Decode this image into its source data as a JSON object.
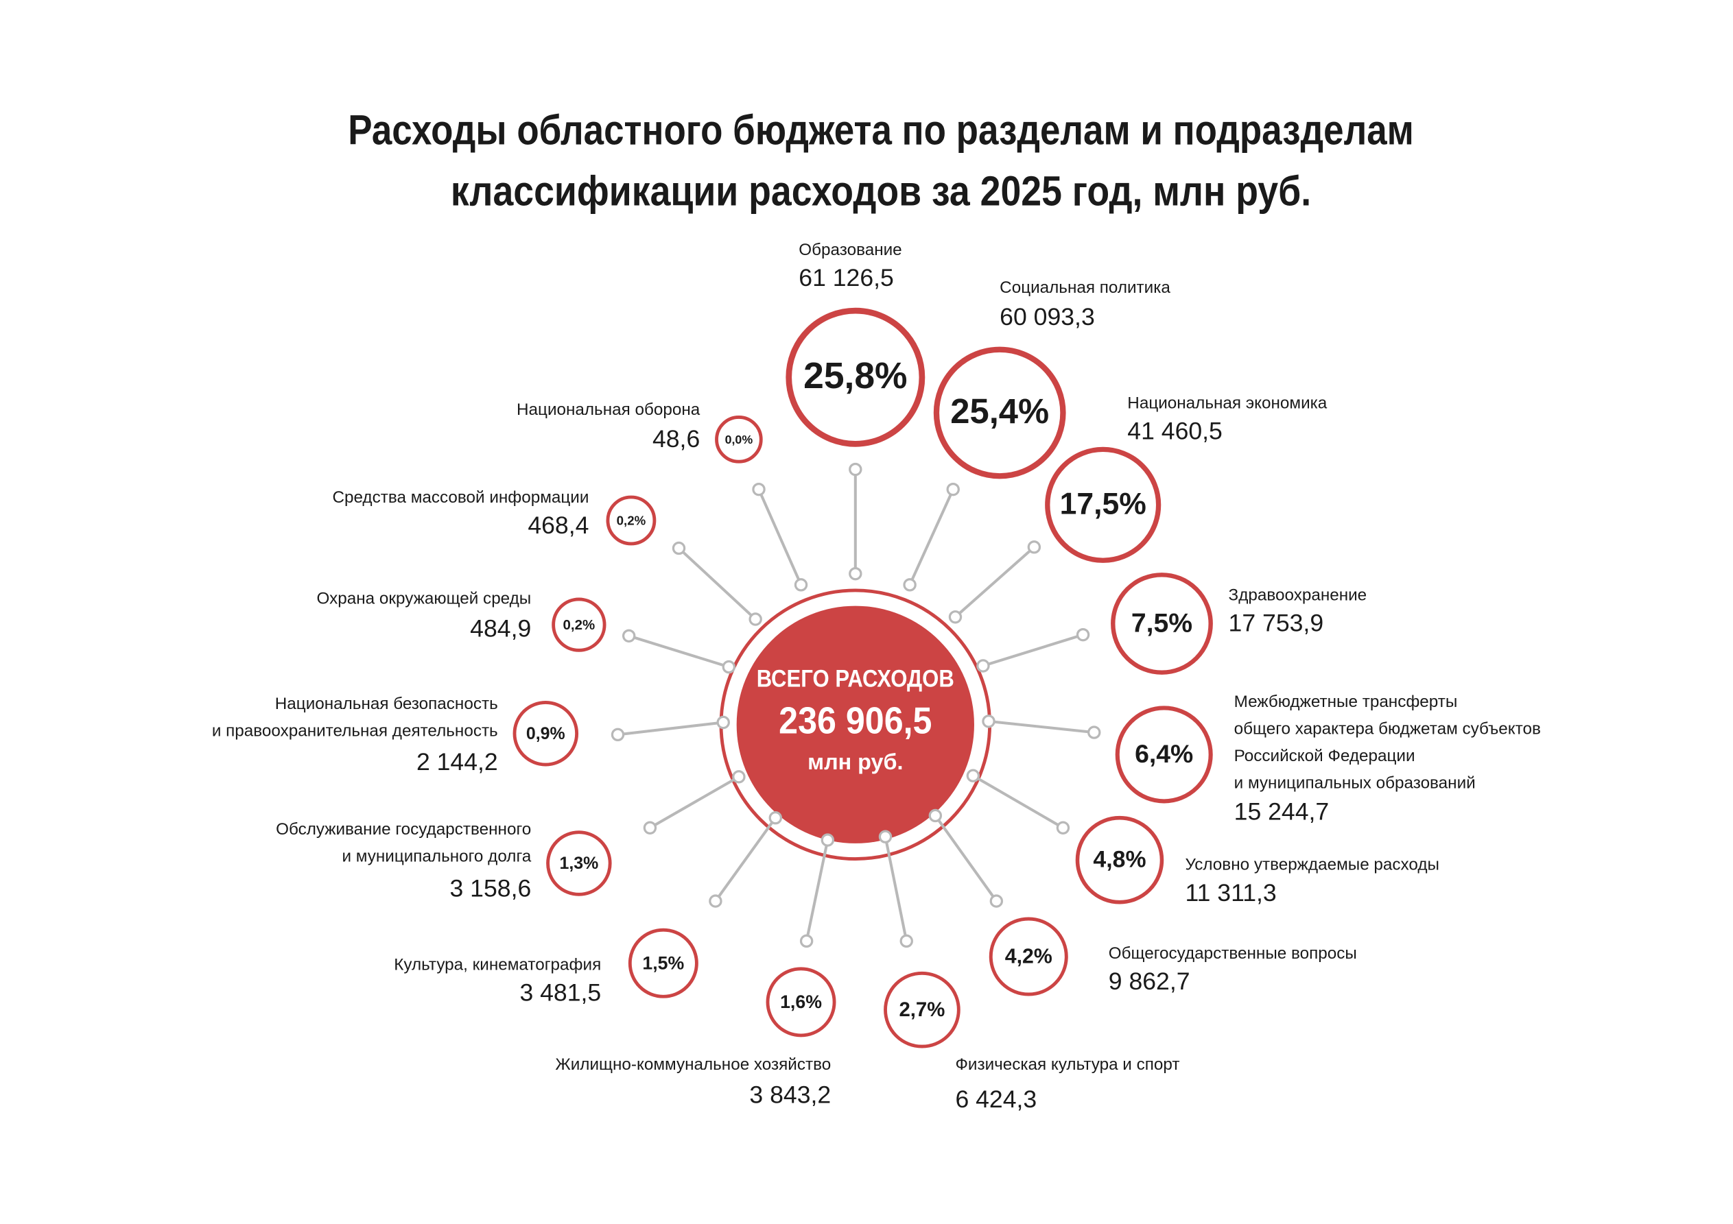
{
  "title": [
    "Расходы областного бюджета по разделам и подразделам",
    "классификации расходов за 2025 год, млн руб."
  ],
  "center": {
    "label": "ВСЕГО РАСХОДОВ",
    "value": "236 906,5",
    "unit": "млн руб."
  },
  "items": [
    {
      "label": [
        "Образование"
      ],
      "value": "61 126,5",
      "share": "25,8%"
    },
    {
      "label": [
        "Социальная политика"
      ],
      "value": "60 093,3",
      "share": "25,4%"
    },
    {
      "label": [
        "Национальная экономика"
      ],
      "value": "41 460,5",
      "share": "17,5%"
    },
    {
      "label": [
        "Здравоохранение"
      ],
      "value": "17 753,9",
      "share": "7,5%"
    },
    {
      "label": [
        "Межбюджетные трансферты",
        "общего характера бюджетам субъектов",
        "Российской Федерации",
        "и муниципальных образований"
      ],
      "value": "15 244,7",
      "share": "6,4%"
    },
    {
      "label": [
        "Условно утверждаемые расходы"
      ],
      "value": "11 311,3",
      "share": "4,8%"
    },
    {
      "label": [
        "Общегосударственные вопросы"
      ],
      "value": "9 862,7",
      "share": "4,2%"
    },
    {
      "label": [
        "Физическая культура и спорт"
      ],
      "value": "6 424,3",
      "share": "2,7%"
    },
    {
      "label": [
        "Жилищно-коммунальное хозяйство"
      ],
      "value": "3 843,2",
      "share": "1,6%"
    },
    {
      "label": [
        "Культура, кинематография"
      ],
      "value": "3 481,5",
      "share": "1,5%"
    },
    {
      "label": [
        "Обслуживание государственного",
        "и муниципального долга"
      ],
      "value": "3 158,6",
      "share": "1,3%"
    },
    {
      "label": [
        "Национальная безопасность",
        "и правоохранительная деятельность"
      ],
      "value": "2 144,2",
      "share": "0,9%"
    },
    {
      "label": [
        "Охрана окружающей среды"
      ],
      "value": "484,9",
      "share": "0,2%"
    },
    {
      "label": [
        "Средства массовой информации"
      ],
      "value": "468,4",
      "share": "0,2%"
    },
    {
      "label": [
        "Национальная оборона"
      ],
      "value": "48,6",
      "share": "0,0%"
    }
  ]
}
